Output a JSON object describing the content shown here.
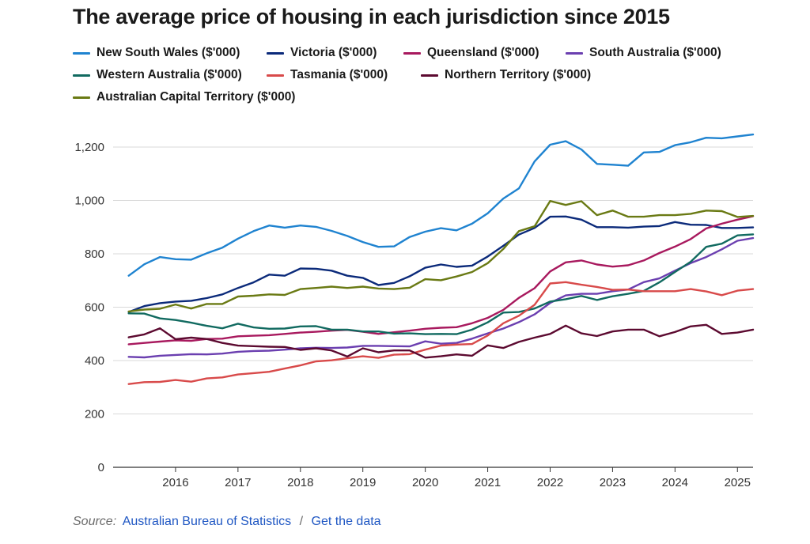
{
  "page": {
    "title": "The average price of housing in each jurisdiction since 2015",
    "source_label": "Source:",
    "source_link": "Australian Bureau of Statistics",
    "source_separator": "/",
    "data_link": "Get the data"
  },
  "chart_data": {
    "type": "line",
    "title": "The average price of housing in each jurisdiction since 2015",
    "xlabel": "",
    "ylabel": "",
    "ylim": [
      0,
      1300
    ],
    "yticks": [
      0,
      200,
      400,
      600,
      800,
      1000,
      1200
    ],
    "ytick_labels": [
      "0",
      "200",
      "400",
      "600",
      "800",
      "1,000",
      "1,200"
    ],
    "xlim": [
      2015.0,
      2025.25
    ],
    "xticks": [
      2016,
      2017,
      2018,
      2019,
      2020,
      2021,
      2022,
      2023,
      2024,
      2025
    ],
    "xtick_labels": [
      "2016",
      "2017",
      "2018",
      "2019",
      "2020",
      "2021",
      "2022",
      "2023",
      "2024",
      "2025"
    ],
    "grid": "horizontal",
    "legend_position": "top",
    "x": [
      2015.25,
      2015.5,
      2015.75,
      2016.0,
      2016.25,
      2016.5,
      2016.75,
      2017.0,
      2017.25,
      2017.5,
      2017.75,
      2018.0,
      2018.25,
      2018.5,
      2018.75,
      2019.0,
      2019.25,
      2019.5,
      2019.75,
      2020.0,
      2020.25,
      2020.5,
      2020.75,
      2021.0,
      2021.25,
      2021.5,
      2021.75,
      2022.0,
      2022.25,
      2022.5,
      2022.75,
      2023.0,
      2023.25,
      2023.5,
      2023.75,
      2024.0,
      2024.25,
      2024.5,
      2024.75,
      2025.0,
      2025.25
    ],
    "series": [
      {
        "name": "New South Wales ($'000)",
        "color": "#1f83d0",
        "values": [
          718,
          761,
          788,
          780,
          778,
          802,
          823,
          857,
          885,
          906,
          898,
          906,
          901,
          886,
          867,
          844,
          826,
          828,
          863,
          883,
          896,
          888,
          913,
          952,
          1007,
          1045,
          1146,
          1209,
          1222,
          1191,
          1137,
          1134,
          1130,
          1180,
          1182,
          1207,
          1218,
          1235,
          1233,
          1240,
          1247
        ]
      },
      {
        "name": "Victoria ($'000)",
        "color": "#0b2a7a",
        "values": [
          582,
          604,
          615,
          621,
          624,
          634,
          648,
          672,
          693,
          722,
          718,
          745,
          744,
          737,
          718,
          710,
          683,
          691,
          716,
          748,
          760,
          751,
          756,
          790,
          830,
          872,
          897,
          939,
          940,
          928,
          900,
          900,
          898,
          902,
          904,
          919,
          909,
          908,
          897,
          897,
          899
        ]
      },
      {
        "name": "Queensland ($'000)",
        "color": "#a8195e",
        "values": [
          461,
          466,
          471,
          476,
          474,
          481,
          482,
          491,
          493,
          495,
          500,
          505,
          508,
          512,
          515,
          508,
          500,
          506,
          512,
          519,
          523,
          525,
          540,
          560,
          590,
          635,
          671,
          734,
          768,
          775,
          760,
          752,
          757,
          775,
          803,
          827,
          855,
          895,
          913,
          928,
          941
        ]
      },
      {
        "name": "South Australia ($'000)",
        "color": "#6b3fb0",
        "values": [
          414,
          412,
          418,
          421,
          424,
          423,
          426,
          433,
          436,
          437,
          441,
          446,
          448,
          447,
          449,
          455,
          455,
          454,
          453,
          472,
          463,
          466,
          482,
          502,
          520,
          544,
          573,
          616,
          644,
          650,
          650,
          660,
          666,
          694,
          708,
          737,
          765,
          788,
          817,
          849,
          859
        ]
      },
      {
        "name": "Western Australia ($'000)",
        "color": "#116a60",
        "values": [
          577,
          576,
          558,
          552,
          542,
          530,
          521,
          538,
          524,
          519,
          520,
          528,
          529,
          516,
          516,
          509,
          509,
          501,
          502,
          499,
          500,
          499,
          516,
          543,
          580,
          582,
          595,
          621,
          630,
          642,
          627,
          641,
          650,
          661,
          693,
          732,
          770,
          826,
          838,
          869,
          873
        ]
      },
      {
        "name": "Tasmania ($'000)",
        "color": "#d84a4a",
        "values": [
          312,
          319,
          320,
          327,
          321,
          333,
          337,
          348,
          353,
          358,
          370,
          382,
          397,
          401,
          409,
          416,
          410,
          422,
          424,
          441,
          456,
          460,
          462,
          494,
          540,
          568,
          609,
          689,
          694,
          684,
          676,
          665,
          666,
          660,
          660,
          660,
          668,
          659,
          645,
          662,
          668
        ]
      },
      {
        "name": "Northern Territory ($'000)",
        "color": "#5c0a30",
        "values": [
          487,
          498,
          521,
          480,
          486,
          481,
          466,
          456,
          454,
          452,
          451,
          440,
          446,
          438,
          415,
          446,
          431,
          438,
          438,
          411,
          416,
          423,
          418,
          457,
          447,
          470,
          486,
          500,
          531,
          502,
          492,
          509,
          516,
          516,
          491,
          507,
          528,
          534,
          500,
          505,
          516
        ]
      },
      {
        "name": "Australian Capital Territory ($'000)",
        "color": "#6a7a14",
        "values": [
          584,
          591,
          594,
          610,
          595,
          612,
          612,
          640,
          643,
          648,
          646,
          668,
          672,
          677,
          672,
          677,
          670,
          668,
          673,
          705,
          701,
          715,
          732,
          765,
          818,
          885,
          903,
          998,
          983,
          997,
          945,
          962,
          939,
          939,
          945,
          945,
          950,
          962,
          960,
          938,
          942
        ]
      }
    ]
  }
}
